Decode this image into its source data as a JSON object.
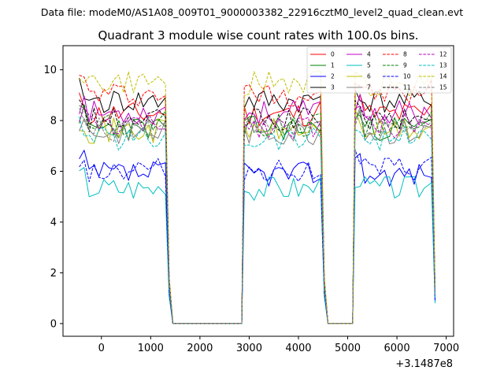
{
  "chart_data": {
    "type": "line",
    "suptitle": "Data file: modeM0/AS1A08_009T01_9000003382_22916cztM0_level2_quad_clean.evt",
    "title": "Quadrant 3 module wise count rates with 100.0s bins.",
    "xlabel": "",
    "ylabel": "",
    "x_offset_label": "+3.1487e8",
    "xlim": [
      -780,
      7150
    ],
    "ylim": [
      -0.5,
      10.95
    ],
    "xticks": [
      "0",
      "1000",
      "2000",
      "3000",
      "4000",
      "5000",
      "6000",
      "7000"
    ],
    "xtick_values": [
      0,
      1000,
      2000,
      3000,
      4000,
      5000,
      6000,
      7000
    ],
    "yticks": [
      "0",
      "2",
      "4",
      "6",
      "8",
      "10"
    ],
    "ytick_values": [
      0,
      2,
      4,
      6,
      8,
      10
    ],
    "legend_position": "top-right",
    "series": [
      {
        "name": "0",
        "color": "#ff0000",
        "dash": "solid",
        "level": 8.25,
        "seed": 11
      },
      {
        "name": "1",
        "color": "#008000",
        "dash": "solid",
        "level": 7.7,
        "seed": 23
      },
      {
        "name": "2",
        "color": "#0000ff",
        "dash": "solid",
        "level": 5.9,
        "seed": 37
      },
      {
        "name": "3",
        "color": "#000000",
        "dash": "solid",
        "level": 8.75,
        "seed": 41
      },
      {
        "name": "4",
        "color": "#bf00bf",
        "dash": "solid",
        "level": 8.3,
        "seed": 53
      },
      {
        "name": "5",
        "color": "#00bfbf",
        "dash": "solid",
        "level": 5.35,
        "seed": 67
      },
      {
        "name": "6",
        "color": "#bfbf00",
        "dash": "solid",
        "level": 7.6,
        "seed": 71
      },
      {
        "name": "7",
        "color": "#808080",
        "dash": "solid",
        "level": 7.55,
        "seed": 83
      },
      {
        "name": "8",
        "color": "#ff0000",
        "dash": "dashed",
        "level": 9.05,
        "seed": 97
      },
      {
        "name": "9",
        "color": "#008000",
        "dash": "dashed",
        "level": 7.8,
        "seed": 101
      },
      {
        "name": "10",
        "color": "#0000ff",
        "dash": "dashed",
        "level": 6.05,
        "seed": 113
      },
      {
        "name": "11",
        "color": "#000000",
        "dash": "dashed",
        "level": 8.0,
        "seed": 127
      },
      {
        "name": "12",
        "color": "#bf00bf",
        "dash": "dashed",
        "level": 7.8,
        "seed": 131
      },
      {
        "name": "13",
        "color": "#00bfbf",
        "dash": "dashed",
        "level": 7.3,
        "seed": 139
      },
      {
        "name": "14",
        "color": "#bfbf00",
        "dash": "dashed",
        "level": 9.45,
        "seed": 149
      },
      {
        "name": "15",
        "color": "#808080",
        "dash": "dashed",
        "level": 7.6,
        "seed": 157
      }
    ],
    "active_segments": [
      {
        "start": -450,
        "end": 1350,
        "x_step": 100
      },
      {
        "start": 2900,
        "end": 4500,
        "x_step": 100
      },
      {
        "start": 5150,
        "end": 6750,
        "x_step": 100
      }
    ],
    "gap_value": 0.0
  }
}
